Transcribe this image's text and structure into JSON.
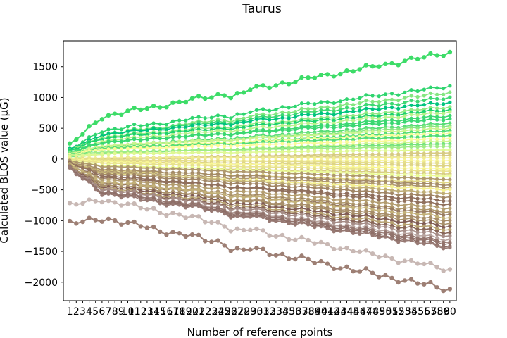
{
  "figure": {
    "title": "Taurus"
  },
  "chart_data": {
    "type": "line",
    "title": "Taurus",
    "xlabel": "Number of reference points",
    "ylabel": "Calculated BLOS value (μG)",
    "xlim": [
      0,
      61
    ],
    "ylim": [
      -2300,
      1920
    ],
    "x_ticks": [
      1,
      2,
      3,
      4,
      5,
      6,
      7,
      8,
      9,
      10,
      11,
      12,
      13,
      14,
      15,
      16,
      17,
      18,
      19,
      20,
      21,
      22,
      23,
      24,
      25,
      26,
      27,
      28,
      29,
      30,
      31,
      32,
      33,
      34,
      35,
      36,
      37,
      38,
      39,
      40,
      41,
      42,
      43,
      44,
      45,
      46,
      47,
      48,
      49,
      50,
      51,
      52,
      53,
      54,
      55,
      56,
      57,
      58,
      59,
      60
    ],
    "y_ticks": [
      -2000,
      -1500,
      -1000,
      -500,
      0,
      500,
      1000,
      1500
    ],
    "x": [
      1,
      2,
      3,
      4,
      5,
      6,
      7,
      8,
      9,
      10,
      11,
      12,
      13,
      14,
      15,
      16,
      17,
      18,
      19,
      20,
      21,
      22,
      23,
      24,
      25,
      26,
      27,
      28,
      29,
      30,
      31,
      32,
      33,
      34,
      35,
      36,
      37,
      38,
      39,
      40,
      41,
      42,
      43,
      44,
      45,
      46,
      47,
      48,
      49,
      50,
      51,
      52,
      53,
      54,
      55,
      56,
      57,
      58,
      59,
      60
    ],
    "grid": false,
    "legend": "none",
    "colormap": "terrain",
    "approximate_final_values_at_x60": [
      1730,
      1180,
      1080,
      1000,
      920,
      840,
      800,
      760,
      700,
      650,
      580,
      540,
      500,
      460,
      420,
      380,
      330,
      290,
      250,
      210,
      150,
      100,
      60,
      20,
      -30,
      -70,
      -110,
      -160,
      -200,
      -240,
      -280,
      -330,
      -380,
      -420,
      -460,
      -500,
      -560,
      -620,
      -680,
      -740,
      -800,
      -860,
      -900,
      -950,
      -1000,
      -1050,
      -1100,
      -1150,
      -1200,
      -1250,
      -1310,
      -1350,
      -1380,
      -1420,
      -1440,
      -1800,
      -2120
    ],
    "series_note": "57 series, one per row of approximate_final_values; each series rises steeply from x=1 to x=6, dips near x=27, and drifts toward its final value",
    "highlight_series": [
      {
        "start": 220,
        "end": 1730,
        "color": "#3ddc68"
      },
      {
        "start": -1060,
        "end": -2120,
        "color": "#9d7f74"
      },
      {
        "start": -760,
        "end": -1800,
        "color": "#c8b8b4"
      }
    ]
  }
}
